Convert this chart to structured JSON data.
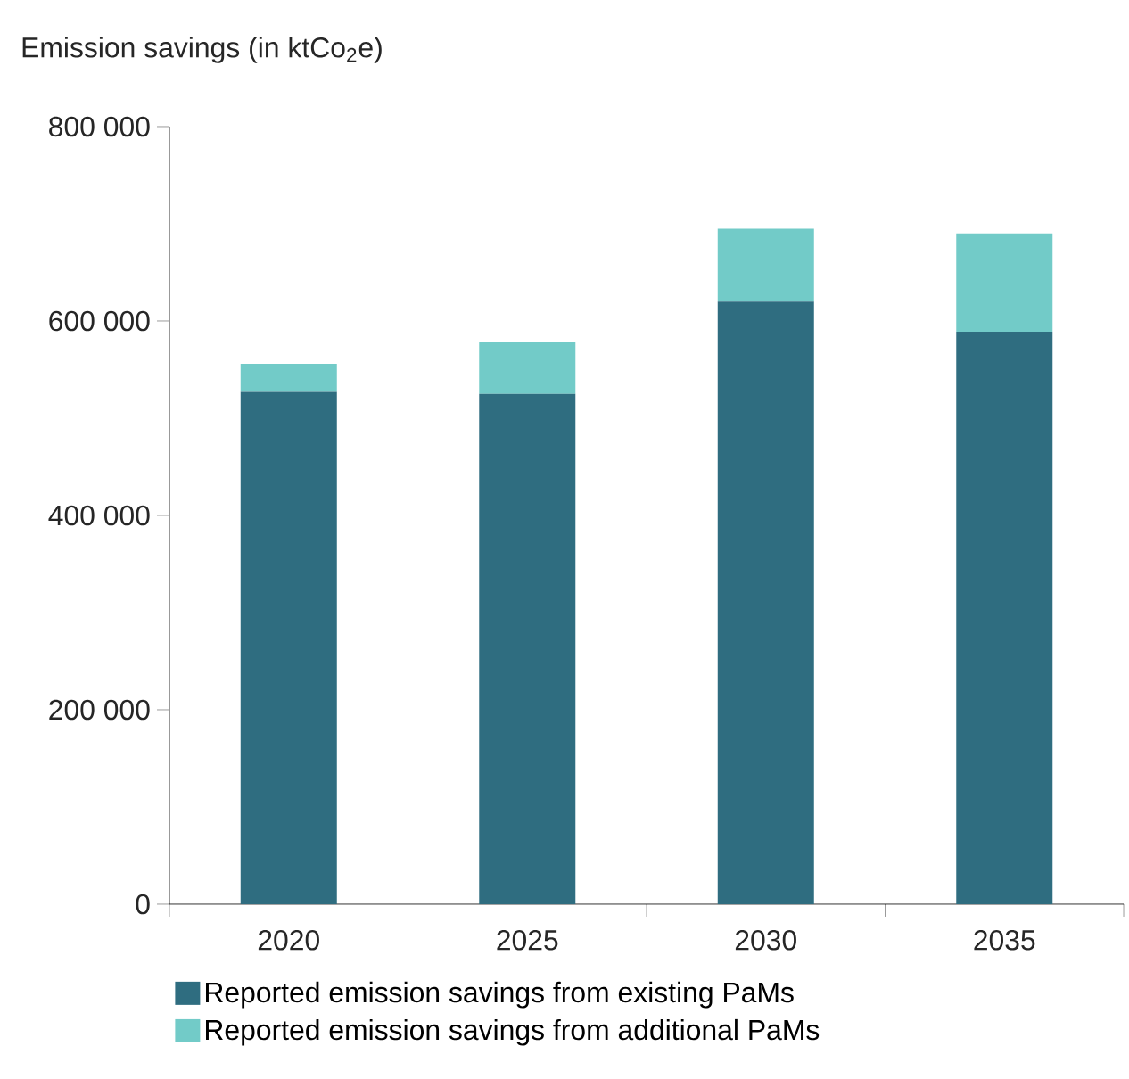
{
  "chart_data": {
    "type": "bar",
    "stacked": true,
    "title": "Emission savings (in ktCo$_{2}$e)",
    "categories": [
      "2020",
      "2025",
      "2030",
      "2035"
    ],
    "series": [
      {
        "name": "Reported emission savings from existing PaMs",
        "color": "#2f6d80",
        "values": [
          527000,
          525000,
          620000,
          589000
        ]
      },
      {
        "name": "Reported emission savings from additional PaMs",
        "color": "#72cbc8",
        "values": [
          29000,
          53000,
          75000,
          101000
        ]
      }
    ],
    "ylim": [
      0,
      800000
    ],
    "yticks": [
      0,
      {
        "value": 200000,
        "label": "200 000"
      },
      {
        "value": 400000,
        "label": "400 000"
      },
      {
        "value": 600000,
        "label": "600 000"
      },
      {
        "value": 800000,
        "label": "800 000"
      }
    ],
    "grid": false,
    "legend": "bottom"
  }
}
